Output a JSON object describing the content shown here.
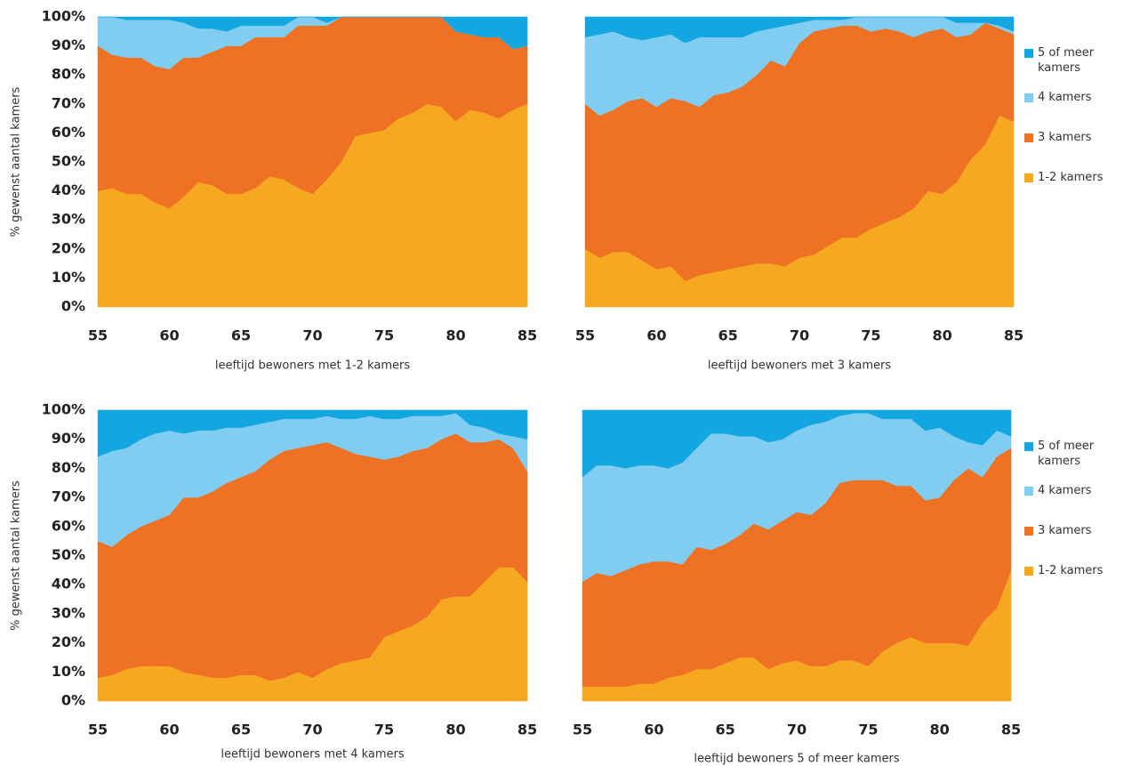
{
  "chart_data": [
    {
      "type": "area",
      "stacked": true,
      "xlabel": "leeftijd bewoners met 1-2 kamers",
      "ylabel": "% gewenst aantal kamers",
      "x": [
        55,
        56,
        57,
        58,
        59,
        60,
        61,
        62,
        63,
        64,
        65,
        66,
        67,
        68,
        69,
        70,
        71,
        72,
        73,
        74,
        75,
        76,
        77,
        78,
        79,
        80,
        81,
        82,
        83,
        84,
        85
      ],
      "xlim": [
        55,
        85
      ],
      "xticks": [
        55,
        60,
        65,
        70,
        75,
        80,
        85
      ],
      "ylim": [
        0,
        100
      ],
      "yticks": [
        {
          "value": 0,
          "label": "0%"
        },
        {
          "value": 10,
          "label": "10%"
        },
        {
          "value": 20,
          "label": "20%"
        },
        {
          "value": 30,
          "label": "30%"
        },
        {
          "value": 40,
          "label": "40%"
        },
        {
          "value": 50,
          "label": "50%"
        },
        {
          "value": 60,
          "label": "60%"
        },
        {
          "value": 70,
          "label": "70%"
        },
        {
          "value": 80,
          "label": "80%"
        },
        {
          "value": 90,
          "label": "90%"
        },
        {
          "value": 100,
          "label": "100%"
        }
      ],
      "series": [
        {
          "name": "5 of meer kamers",
          "color": "#14a6e0",
          "values": [
            0,
            0,
            1,
            1,
            1,
            1,
            2,
            4,
            4,
            5,
            3,
            3,
            3,
            3,
            0,
            0,
            2,
            0,
            0,
            0,
            0,
            0,
            0,
            0,
            0,
            5,
            6,
            7,
            7,
            11,
            10
          ]
        },
        {
          "name": "4 kamers",
          "color": "#80cdf1",
          "values": [
            10,
            13,
            13,
            13,
            16,
            17,
            12,
            10,
            8,
            5,
            7,
            4,
            4,
            4,
            3,
            3,
            1,
            0,
            0,
            0,
            0,
            0,
            0,
            0,
            0,
            0,
            0,
            0,
            0,
            0,
            0
          ]
        },
        {
          "name": "3 kamers",
          "color": "#ee7124",
          "values": [
            50,
            46,
            47,
            47,
            47,
            48,
            48,
            43,
            46,
            51,
            51,
            52,
            48,
            49,
            56,
            58,
            53,
            50,
            41,
            40,
            39,
            35,
            33,
            30,
            31,
            31,
            26,
            26,
            28,
            21,
            20
          ]
        },
        {
          "name": "1-2 kamers",
          "color": "#f6a821",
          "values": [
            40,
            41,
            39,
            39,
            36,
            34,
            38,
            43,
            42,
            39,
            39,
            41,
            45,
            44,
            41,
            39,
            44,
            50,
            59,
            60,
            61,
            65,
            67,
            70,
            69,
            64,
            68,
            67,
            65,
            68,
            70
          ]
        }
      ]
    },
    {
      "type": "area",
      "stacked": true,
      "xlabel": "leeftijd bewoners met 3 kamers",
      "legend": "right",
      "x": [
        55,
        56,
        57,
        58,
        59,
        60,
        61,
        62,
        63,
        64,
        65,
        66,
        67,
        68,
        69,
        70,
        71,
        72,
        73,
        74,
        75,
        76,
        77,
        78,
        79,
        80,
        81,
        82,
        83,
        84,
        85
      ],
      "xlim": [
        55,
        85
      ],
      "xticks": [
        55,
        60,
        65,
        70,
        75,
        80,
        85
      ],
      "ylim": [
        0,
        100
      ],
      "series": [
        {
          "name": "5 of meer kamers",
          "color": "#14a6e0",
          "values": [
            7,
            6,
            5,
            7,
            8,
            7,
            6,
            9,
            7,
            7,
            7,
            7,
            5,
            4,
            3,
            2,
            1,
            1,
            1,
            0,
            0,
            0,
            0,
            0,
            0,
            0,
            2,
            2,
            2,
            3,
            5
          ]
        },
        {
          "name": "4 kamers",
          "color": "#80cdf1",
          "values": [
            23,
            28,
            27,
            22,
            20,
            24,
            22,
            20,
            24,
            20,
            19,
            17,
            15,
            11,
            14,
            7,
            4,
            3,
            2,
            3,
            5,
            4,
            5,
            7,
            5,
            4,
            5,
            4,
            0,
            1,
            1
          ]
        },
        {
          "name": "3 kamers",
          "color": "#ee7124",
          "values": [
            50,
            49,
            49,
            52,
            56,
            56,
            58,
            62,
            58,
            61,
            61,
            62,
            65,
            70,
            69,
            74,
            77,
            75,
            73,
            73,
            68,
            67,
            64,
            59,
            55,
            57,
            50,
            43,
            42,
            30,
            30
          ]
        },
        {
          "name": "1-2 kamers",
          "color": "#f6a821",
          "values": [
            20,
            17,
            19,
            19,
            16,
            13,
            14,
            9,
            11,
            12,
            13,
            14,
            15,
            15,
            14,
            17,
            18,
            21,
            24,
            24,
            27,
            29,
            31,
            34,
            40,
            39,
            43,
            51,
            56,
            66,
            64
          ]
        }
      ]
    },
    {
      "type": "area",
      "stacked": true,
      "xlabel": "leeftijd bewoners met 4 kamers",
      "ylabel": "% gewenst aantal kamers",
      "x": [
        55,
        56,
        57,
        58,
        59,
        60,
        61,
        62,
        63,
        64,
        65,
        66,
        67,
        68,
        69,
        70,
        71,
        72,
        73,
        74,
        75,
        76,
        77,
        78,
        79,
        80,
        81,
        82,
        83,
        84,
        85
      ],
      "xlim": [
        55,
        85
      ],
      "xticks": [
        55,
        60,
        65,
        70,
        75,
        80,
        85
      ],
      "ylim": [
        0,
        100
      ],
      "yticks": [
        {
          "value": 0,
          "label": "0%"
        },
        {
          "value": 10,
          "label": "10%"
        },
        {
          "value": 20,
          "label": "20%"
        },
        {
          "value": 30,
          "label": "30%"
        },
        {
          "value": 40,
          "label": "40%"
        },
        {
          "value": 50,
          "label": "50%"
        },
        {
          "value": 60,
          "label": "60%"
        },
        {
          "value": 70,
          "label": "70%"
        },
        {
          "value": 80,
          "label": "80%"
        },
        {
          "value": 90,
          "label": "90%"
        },
        {
          "value": 100,
          "label": "100%"
        }
      ],
      "series": [
        {
          "name": "5 of meer kamers",
          "color": "#14a6e0",
          "values": [
            16,
            14,
            13,
            10,
            8,
            7,
            8,
            7,
            7,
            6,
            6,
            5,
            4,
            3,
            3,
            3,
            2,
            3,
            3,
            2,
            3,
            3,
            2,
            2,
            2,
            1,
            5,
            6,
            8,
            9,
            10
          ]
        },
        {
          "name": "4 kamers",
          "color": "#80cdf1",
          "values": [
            29,
            33,
            30,
            30,
            30,
            29,
            22,
            23,
            21,
            19,
            17,
            16,
            13,
            11,
            10,
            9,
            9,
            10,
            12,
            14,
            14,
            13,
            12,
            11,
            8,
            7,
            6,
            5,
            2,
            4,
            11
          ]
        },
        {
          "name": "3 kamers",
          "color": "#ee7124",
          "values": [
            47,
            44,
            46,
            48,
            50,
            52,
            60,
            61,
            64,
            67,
            68,
            70,
            76,
            78,
            77,
            80,
            78,
            74,
            71,
            69,
            61,
            60,
            60,
            58,
            55,
            56,
            53,
            48,
            44,
            41,
            38
          ]
        },
        {
          "name": "1-2 kamers",
          "color": "#f6a821",
          "values": [
            8,
            9,
            11,
            12,
            12,
            12,
            10,
            9,
            8,
            8,
            9,
            9,
            7,
            8,
            10,
            8,
            11,
            13,
            14,
            15,
            22,
            24,
            26,
            29,
            35,
            36,
            36,
            41,
            46,
            46,
            41
          ]
        }
      ]
    },
    {
      "type": "area",
      "stacked": true,
      "xlabel": "leeftijd bewoners 5 of meer kamers",
      "legend": "right",
      "x": [
        55,
        56,
        57,
        58,
        59,
        60,
        61,
        62,
        63,
        64,
        65,
        66,
        67,
        68,
        69,
        70,
        71,
        72,
        73,
        74,
        75,
        76,
        77,
        78,
        79,
        80,
        81,
        82,
        83,
        84,
        85
      ],
      "xlim": [
        55,
        85
      ],
      "xticks": [
        55,
        60,
        65,
        70,
        75,
        80,
        85
      ],
      "ylim": [
        0,
        100
      ],
      "series": [
        {
          "name": "5 of meer kamers",
          "color": "#14a6e0",
          "values": [
            23,
            19,
            19,
            20,
            19,
            19,
            20,
            18,
            13,
            8,
            8,
            9,
            9,
            11,
            10,
            7,
            5,
            4,
            2,
            1,
            1,
            3,
            3,
            3,
            7,
            6,
            9,
            11,
            12,
            7,
            9
          ]
        },
        {
          "name": "4 kamers",
          "color": "#80cdf1",
          "values": [
            36,
            37,
            38,
            35,
            34,
            33,
            32,
            35,
            34,
            40,
            38,
            34,
            30,
            30,
            28,
            28,
            31,
            28,
            23,
            23,
            23,
            21,
            23,
            23,
            24,
            24,
            15,
            9,
            11,
            9,
            4
          ]
        },
        {
          "name": "3 kamers",
          "color": "#ee7124",
          "values": [
            36,
            39,
            38,
            40,
            41,
            42,
            40,
            38,
            42,
            41,
            41,
            42,
            46,
            48,
            49,
            51,
            52,
            56,
            61,
            62,
            64,
            59,
            54,
            52,
            49,
            50,
            56,
            61,
            50,
            52,
            42
          ]
        },
        {
          "name": "1-2 kamers",
          "color": "#f6a821",
          "values": [
            5,
            5,
            5,
            5,
            6,
            6,
            8,
            9,
            11,
            11,
            13,
            15,
            15,
            11,
            13,
            14,
            12,
            12,
            14,
            14,
            12,
            17,
            20,
            22,
            20,
            20,
            20,
            19,
            27,
            32,
            45
          ]
        }
      ]
    }
  ]
}
